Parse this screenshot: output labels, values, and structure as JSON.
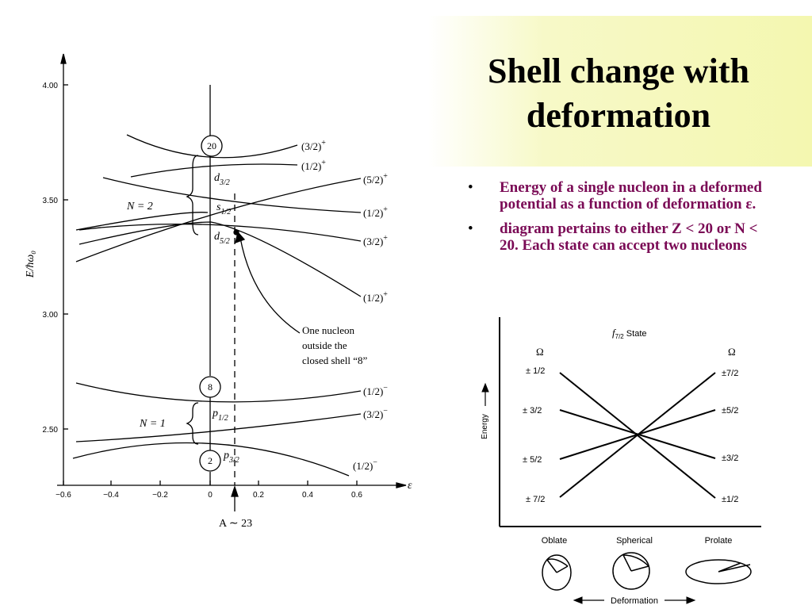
{
  "slide": {
    "title_line1": "Shell change with",
    "title_line2": "deformation",
    "bullets": [
      "Energy of a single nucleon in a deformed potential as a function of deformation ε.",
      "diagram pertains to either Z < 20 or N < 20. Each state can accept two nucleons"
    ]
  },
  "nilsson": {
    "y_axis_label": "E/ħω₀",
    "x_axis_label": "ε",
    "y_ticks": [
      "4.00",
      "3.50",
      "3.00",
      "2.50"
    ],
    "x_ticks": [
      "−0.6",
      "−0.4",
      "−0.2",
      "0",
      "0.2",
      "0.4",
      "0.6"
    ],
    "shell_numbers": [
      "20",
      "8",
      "2"
    ],
    "shell_groups": [
      "N = 2",
      "N = 1"
    ],
    "subshells": [
      "d",
      "3/2",
      "s",
      "1/2",
      "d",
      "5/2",
      "p",
      "1/2",
      "p",
      "3/2"
    ],
    "level_labels": [
      "(3/2)",
      "+",
      "(1/2)",
      "+",
      "(5/2)",
      "+",
      "(1/2)",
      "+",
      "(3/2)",
      "+",
      "(1/2)",
      "+",
      "(1/2)",
      "−",
      "(3/2)",
      "−",
      "(1/2)",
      "−"
    ],
    "annotation_lines": [
      "One nucleon",
      "outside the",
      "closed shell “8”"
    ],
    "mass_label": "A ∼ 23"
  },
  "f72_diagram": {
    "title_prefix": "f",
    "title_sub": "7/2",
    "title_suffix": " State",
    "omega_symbol": "Ω",
    "energy_label": "Energy",
    "left_values": [
      "± 1/2",
      "± 3/2",
      "± 5/2",
      "± 7/2"
    ],
    "right_values": [
      "±7/2",
      "±5/2",
      "±3/2",
      "±1/2"
    ],
    "shapes": [
      "Oblate",
      "Spherical",
      "Prolate"
    ],
    "deformation_label": "Deformation"
  }
}
